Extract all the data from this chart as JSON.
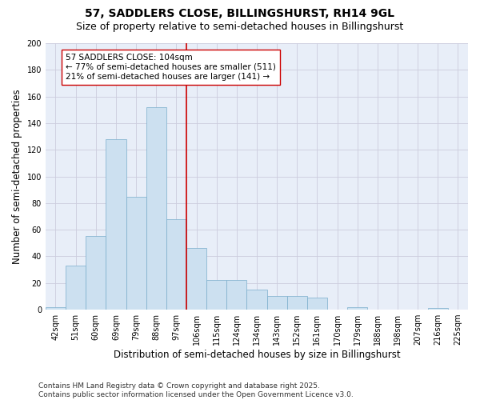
{
  "title_line1": "57, SADDLERS CLOSE, BILLINGSHURST, RH14 9GL",
  "title_line2": "Size of property relative to semi-detached houses in Billingshurst",
  "xlabel": "Distribution of semi-detached houses by size in Billingshurst",
  "ylabel": "Number of semi-detached properties",
  "categories": [
    "42sqm",
    "51sqm",
    "60sqm",
    "69sqm",
    "79sqm",
    "88sqm",
    "97sqm",
    "106sqm",
    "115sqm",
    "124sqm",
    "134sqm",
    "143sqm",
    "152sqm",
    "161sqm",
    "170sqm",
    "179sqm",
    "188sqm",
    "198sqm",
    "207sqm",
    "216sqm",
    "225sqm"
  ],
  "values": [
    2,
    33,
    55,
    128,
    85,
    152,
    68,
    46,
    22,
    22,
    15,
    10,
    10,
    9,
    0,
    2,
    0,
    0,
    0,
    1,
    0
  ],
  "bar_color": "#cce0f0",
  "bar_edge_color": "#7aadcc",
  "vline_color": "#cc0000",
  "annotation_text": "57 SADDLERS CLOSE: 104sqm\n← 77% of semi-detached houses are smaller (511)\n21% of semi-detached houses are larger (141) →",
  "annotation_box_color": "#ffffff",
  "annotation_box_edge": "#cc0000",
  "ylim": [
    0,
    200
  ],
  "yticks": [
    0,
    20,
    40,
    60,
    80,
    100,
    120,
    140,
    160,
    180,
    200
  ],
  "grid_color": "#ccccdd",
  "background_color": "#e8eef8",
  "footnote": "Contains HM Land Registry data © Crown copyright and database right 2025.\nContains public sector information licensed under the Open Government Licence v3.0.",
  "title_fontsize": 10,
  "subtitle_fontsize": 9,
  "axis_label_fontsize": 8.5,
  "tick_fontsize": 7,
  "annotation_fontsize": 7.5,
  "footnote_fontsize": 6.5
}
